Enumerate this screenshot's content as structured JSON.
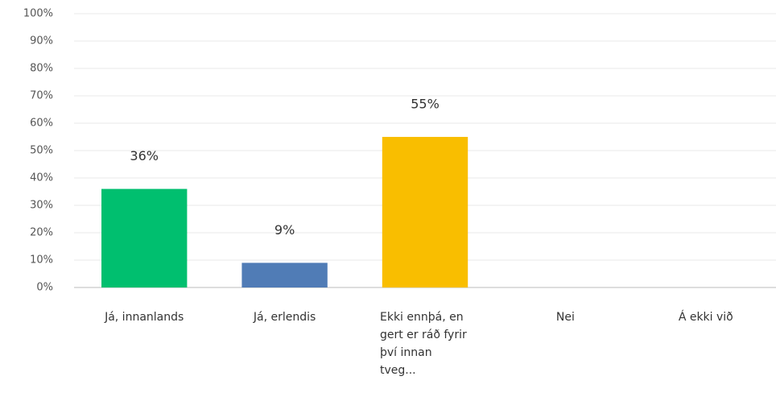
{
  "chart_data": {
    "type": "bar",
    "categories": [
      "Já, innanlands",
      "Já, erlendis",
      "Ekki ennþá, en gert er ráð fyrir því innan tveg...",
      "Nei",
      "Á ekki við"
    ],
    "values": [
      36,
      9,
      55,
      0,
      0
    ],
    "value_labels": [
      "36%",
      "9%",
      "55%",
      null,
      null
    ],
    "colors": [
      "#00bf6f",
      "#507cb6",
      "#f9be00",
      "#6bc8cd",
      "#ff8b4f"
    ],
    "ylim": [
      0,
      100
    ],
    "yticks": [
      {
        "value": 0,
        "label": "0%"
      },
      {
        "value": 10,
        "label": "10%"
      },
      {
        "value": 20,
        "label": "20%"
      },
      {
        "value": 30,
        "label": "30%"
      },
      {
        "value": 40,
        "label": "40%"
      },
      {
        "value": 50,
        "label": "50%"
      },
      {
        "value": 60,
        "label": "60%"
      },
      {
        "value": 70,
        "label": "70%"
      },
      {
        "value": 80,
        "label": "80%"
      },
      {
        "value": 90,
        "label": "90%"
      },
      {
        "value": 100,
        "label": "100%"
      }
    ],
    "grid": true
  }
}
